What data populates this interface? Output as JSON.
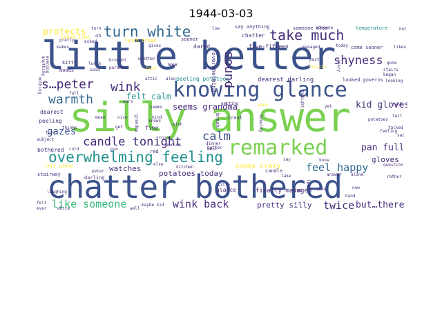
{
  "title": "1944-03-03",
  "words": {
    "little_better": "little better",
    "silly_answer": "silly answer",
    "chatter_bothered": "chatter bothered",
    "knowing_glance": "knowing glance",
    "remarked": "remarked",
    "overwhelming_feeling": "overwhelming feeling",
    "turn_white": "turn white",
    "take_much": "take much",
    "sound": "sound",
    "shyness": "shyness",
    "s_peter": "s…peter",
    "wink": "wink",
    "warmth": "warmth",
    "candle_tonight": "candle tonight",
    "calm": "calm",
    "feel_happy": "feel happy",
    "kid_gloves": "kid gloves",
    "felt_calm": "felt calm",
    "seems_grandma": "seems grandma",
    "like_someone": "like someone",
    "wink_back": "wink back",
    "twice": "twice",
    "but_there": "but…there",
    "pretty_silly": "pretty silly",
    "protects": "protects",
    "gazes": "gazes",
    "pan_full": "pan full",
    "gloves": "gloves",
    "watches": "watches",
    "potatoes_today": "potatoes today",
    "seems_crazy": "seems crazy",
    "finally_managed": "finally managed",
    "peeling_potatoes": "peeling potatoes",
    "dearest_darling": "dearest darling",
    "chatter": "chatter",
    "someone_else": "someone else",
    "five_fifteen": "five-fifteen",
    "come_sooner": "come sooner",
    "lunch_break": "lunch break",
    "dared": "dared",
    "overwhelming": "overwhelming",
    "temperature": "temperature",
    "say_anything": "say anything",
    "looked_governs": "looked governs",
    "sound_like": "sound like",
    "bothered": "bothered",
    "left_alone": "left alone",
    "stairway": "stairway",
    "dearest": "dearest",
    "peeling": "peeling",
    "thinks": "thinks",
    "subject": "subject",
    "cold": "cold",
    "darling": "darling",
    "red": "red",
    "fine": "fine",
    "get": "get",
    "mean": "mean",
    "glance": "glance",
    "break": "break",
    "treat": "treat",
    "due": "due",
    "kitty": "kitty",
    "moods": "moods",
    "lunch": "lunch",
    "said": "said",
    "brought": "brought",
    "parents": "parents",
    "whether": "whether",
    "back": "back",
    "hour": "hour",
    "oh": "oh",
    "makes": "makes",
    "pretty": "pretty",
    "asked": "asked",
    "gives": "gives",
    "sooner": "sooner",
    "hot": "hot",
    "likes": "likes",
    "today": "today",
    "gone": "gone",
    "stairs": "stairs",
    "began": "began",
    "looking": "looking",
    "talk": "talk",
    "tell": "tell",
    "talked": "talked",
    "feeling": "feeling",
    "sat": "sat",
    "question": "question",
    "rather": "rather",
    "alone": "alone",
    "answer": "answer",
    "able": "able",
    "love": "love",
    "white": "white",
    "well": "well",
    "felt": "felt",
    "ever": "ever",
    "maybe_kid": "maybe kid",
    "silly": "silly",
    "kitchen": "kitchen",
    "else": "else",
    "person": "person",
    "think": "think",
    "wish": "wish",
    "dinner": "dinner",
    "went": "went",
    "better": "better",
    "getting": "getting",
    "candle": "candle",
    "take": "take",
    "fall": "fall",
    "left": "left",
    "peter": "peter",
    "pan": "pan",
    "turn": "turn",
    "managed": "managed",
    "finally": "finally",
    "past": "past",
    "crazy": "crazy",
    "nothing": "nothing",
    "evening": "evening",
    "anything": "anything",
    "grandma": "grandma",
    "knowing": "knowing",
    "tonight": "tonight",
    "kind": "kind",
    "know": "know",
    "say": "say",
    "laughing": "laughing",
    "someone": "someone",
    "also": "also",
    "low": "low",
    "seems": "seems",
    "potatoes": "potatoes",
    "ask": "ask",
    "yet": "yet",
    "knows": "knows",
    "warm": "warm",
    "attic": "attic",
    "now": "now",
    "nice": "nice",
    "ears": "ears",
    "hand": "hand"
  },
  "colors": {
    "navy": "#3b528b",
    "purple": "#472c7a",
    "teal": "#21918c",
    "green": "#5ec962",
    "lime": "#7ad151",
    "yellow": "#fde725",
    "slate": "#31688e",
    "seafoam": "#35b779"
  }
}
